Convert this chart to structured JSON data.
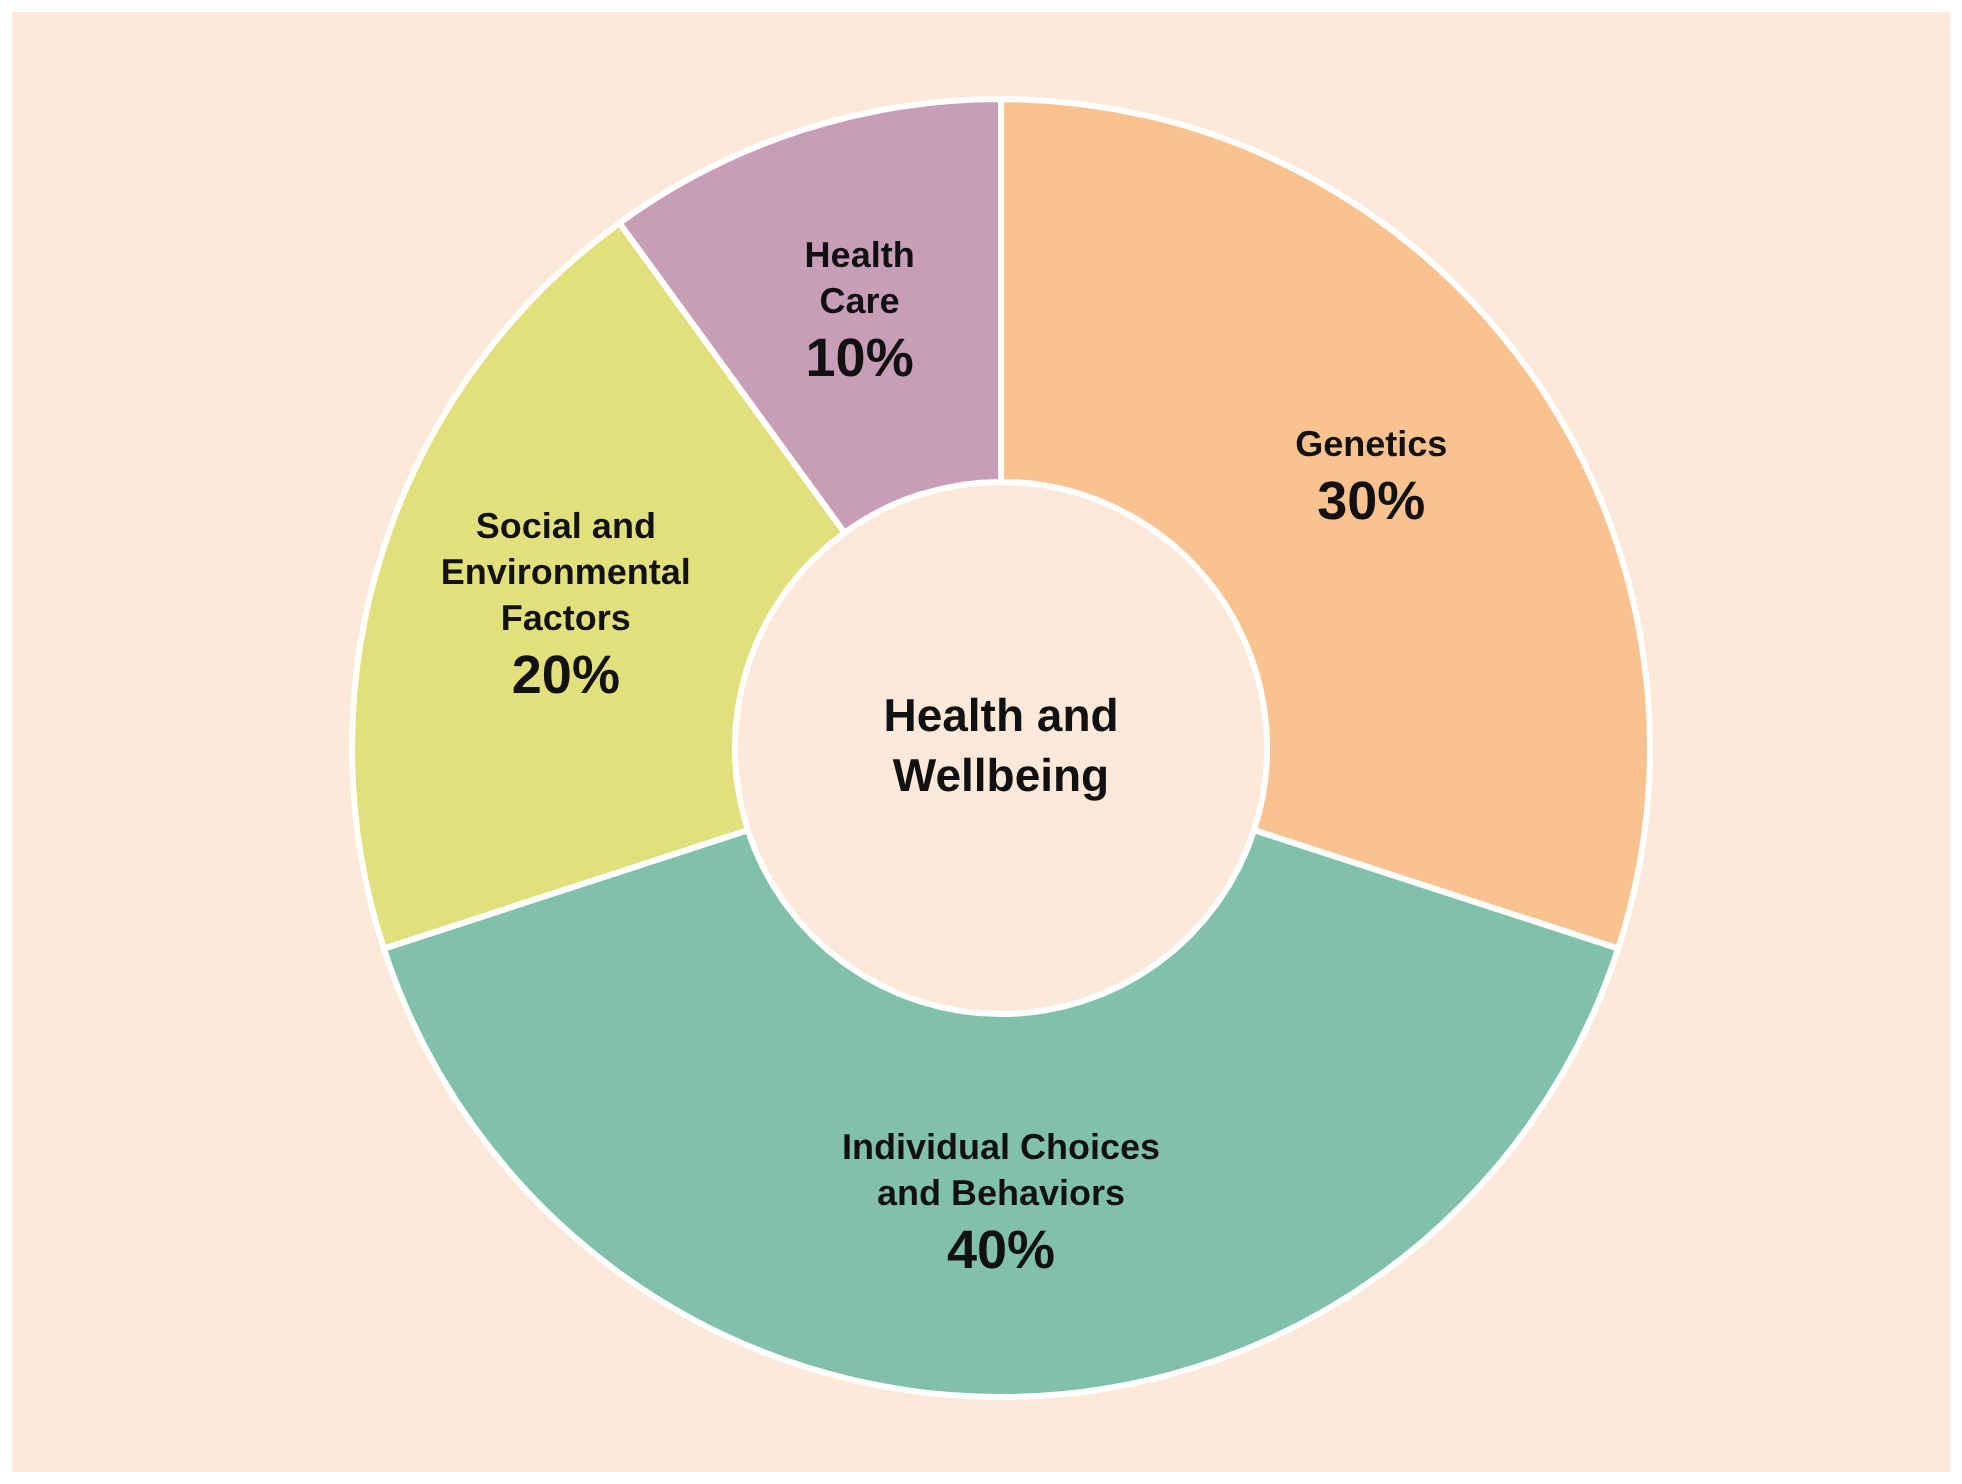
{
  "chart_data": {
    "type": "donut",
    "title": "Health and Wellbeing",
    "categories": [
      "Genetics",
      "Individual Choices and Behaviors",
      "Social and Environmental Factors",
      "Health Care"
    ],
    "values": [
      30,
      40,
      20,
      10
    ],
    "colors": [
      "#f9c28e",
      "#82c0ae",
      "#e2df7d",
      "#c79db8"
    ],
    "value_labels": [
      "30%",
      "40%",
      "20%",
      "10%"
    ],
    "legend": false
  }
}
